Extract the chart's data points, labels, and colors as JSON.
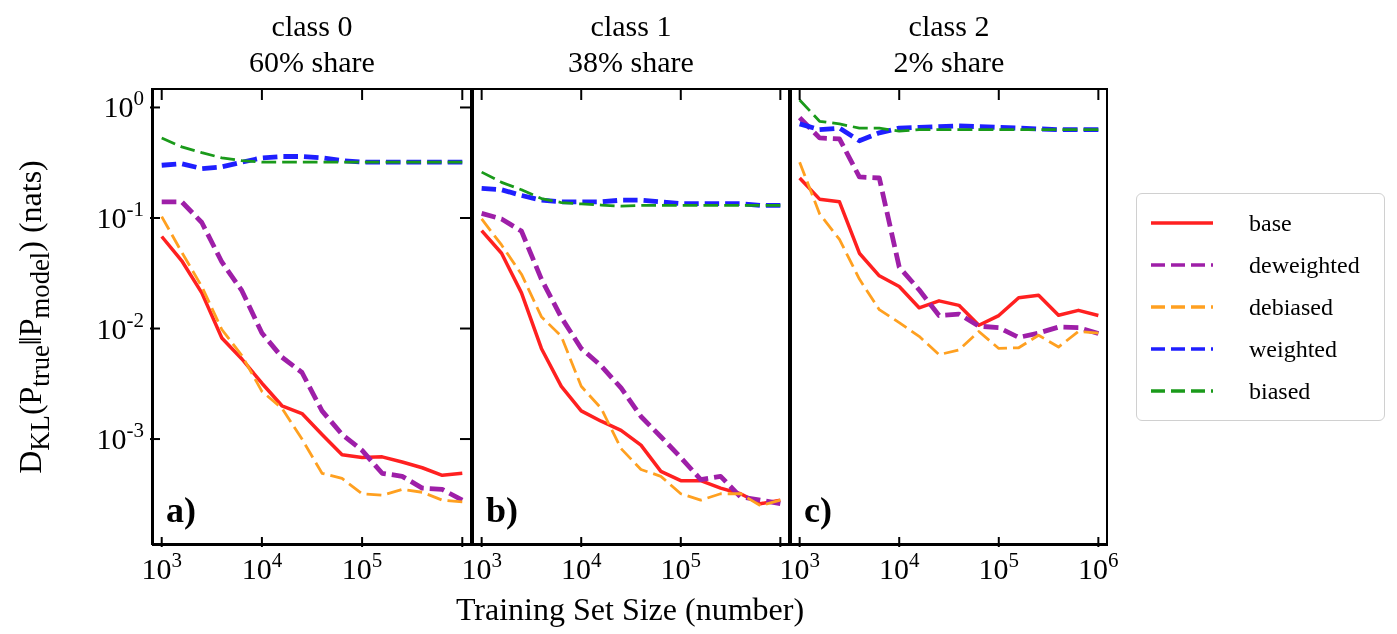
{
  "chart_data": [
    {
      "type": "line",
      "title": "class 0",
      "subtitle": "60% share",
      "ylabel": "D$_{KL}$(P$_{true}$‖P$_{model}$) (nats)",
      "log": "xy",
      "annotations": [
        "a)"
      ],
      "x": [
        1000,
        1585,
        2512,
        3981,
        6310,
        10000,
        15849,
        25119,
        39811,
        63096,
        100000,
        158489,
        251189,
        398107,
        630957,
        1000000
      ],
      "xlim": [
        800,
        1250000
      ],
      "xticks": [
        {
          "value": 1000,
          "label": "10$^{3}$"
        },
        {
          "value": 10000,
          "label": "10$^{4}$"
        },
        {
          "value": 100000,
          "label": "10$^{5}$"
        },
        {
          "value": 1000000,
          "label": null
        }
      ],
      "ylim": [
        0.00011,
        1.5
      ],
      "yticks": [
        {
          "value": 0.001,
          "label": "10$^{-3}$"
        },
        {
          "value": 0.01,
          "label": "10$^{-2}$"
        },
        {
          "value": 0.1,
          "label": "10$^{-1}$"
        },
        {
          "value": 1,
          "label": "10$^{0}$"
        }
      ],
      "grid": false,
      "marker": "none",
      "series": [
        {
          "color": "#ff2020",
          "line_style": "solid",
          "values": [
            0.068,
            0.041,
            0.021,
            0.0082,
            0.0053,
            0.0032,
            0.002,
            0.0017,
            0.0011,
            0.00072,
            0.00068,
            0.00069,
            0.00062,
            0.00055,
            0.00047,
            0.00049
          ]
        },
        {
          "color": "#9e1fa8",
          "line_style": "dashed",
          "values": [
            0.14,
            0.14,
            0.091,
            0.04,
            0.022,
            0.0091,
            0.0055,
            0.004,
            0.0018,
            0.0011,
            0.00079,
            0.00049,
            0.00046,
            0.00036,
            0.00035,
            0.00028
          ]
        },
        {
          "color": "#ffa020",
          "line_style": "dashed",
          "values": [
            0.103,
            0.049,
            0.024,
            0.0098,
            0.0057,
            0.0027,
            0.0019,
            0.001,
            0.00049,
            0.00044,
            0.00032,
            0.00031,
            0.00035,
            0.00033,
            0.00028,
            0.00027
          ]
        },
        {
          "color": "#1f1fff",
          "line_style": "dashed",
          "values": [
            0.3,
            0.31,
            0.28,
            0.29,
            0.32,
            0.35,
            0.36,
            0.36,
            0.35,
            0.33,
            0.32,
            0.32,
            0.32,
            0.32,
            0.32,
            0.32
          ]
        },
        {
          "color": "#1a9a1a",
          "line_style": "dashed",
          "values": [
            0.53,
            0.44,
            0.39,
            0.35,
            0.33,
            0.32,
            0.32,
            0.32,
            0.32,
            0.32,
            0.32,
            0.32,
            0.32,
            0.32,
            0.32,
            0.32
          ]
        }
      ]
    },
    {
      "type": "line",
      "title": "class 1",
      "subtitle": "38% share",
      "xlabel": "Training Set Size (number)",
      "log": "xy",
      "annotations": [
        "b)"
      ],
      "tick_labels": "x",
      "x": [
        1000,
        1585,
        2512,
        3981,
        6310,
        10000,
        15849,
        25119,
        39811,
        63096,
        100000,
        158489,
        251189,
        398107,
        630957,
        1000000
      ],
      "xlim": [
        800,
        1250000
      ],
      "xticks": [
        {
          "value": 1000,
          "label": "10$^{3}$"
        },
        {
          "value": 10000,
          "label": "10$^{4}$"
        },
        {
          "value": 100000,
          "label": "10$^{5}$"
        },
        {
          "value": 1000000,
          "label": null
        }
      ],
      "ylim": [
        0.00011,
        1.5
      ],
      "yticks": [
        {
          "value": 0.001,
          "label": null
        },
        {
          "value": 0.01,
          "label": null
        },
        {
          "value": 0.1,
          "label": null
        },
        {
          "value": 1,
          "label": null
        }
      ],
      "grid": false,
      "marker": "none",
      "series": [
        {
          "color": "#ff2020",
          "line_style": "solid",
          "values": [
            0.077,
            0.048,
            0.021,
            0.0066,
            0.003,
            0.0018,
            0.00145,
            0.0012,
            0.00088,
            0.00051,
            0.00042,
            0.00042,
            0.00036,
            0.00032,
            0.00026,
            0.00028
          ]
        },
        {
          "color": "#9e1fa8",
          "line_style": "dashed",
          "values": [
            0.11,
            0.098,
            0.076,
            0.028,
            0.0126,
            0.0066,
            0.0046,
            0.0029,
            0.0016,
            0.00105,
            0.00068,
            0.00043,
            0.00046,
            0.0003,
            0.00028,
            0.00026
          ]
        },
        {
          "color": "#ffa020",
          "line_style": "dashed",
          "values": [
            0.098,
            0.057,
            0.031,
            0.0128,
            0.0085,
            0.003,
            0.0019,
            0.00082,
            0.00053,
            0.00046,
            0.00032,
            0.00028,
            0.00032,
            0.00032,
            0.00025,
            0.00028
          ]
        },
        {
          "color": "#1f1fff",
          "line_style": "dashed",
          "values": [
            0.185,
            0.18,
            0.16,
            0.145,
            0.14,
            0.14,
            0.14,
            0.145,
            0.145,
            0.14,
            0.135,
            0.135,
            0.135,
            0.135,
            0.13,
            0.13
          ]
        },
        {
          "color": "#1a9a1a",
          "line_style": "dashed",
          "values": [
            0.26,
            0.21,
            0.18,
            0.15,
            0.138,
            0.134,
            0.131,
            0.128,
            0.13,
            0.13,
            0.13,
            0.13,
            0.13,
            0.13,
            0.13,
            0.13
          ]
        }
      ]
    },
    {
      "type": "line",
      "title": "class 2",
      "subtitle": "2% share",
      "log": "xy",
      "annotations": [
        "c)"
      ],
      "tick_labels": "x",
      "legend": "right",
      "x": [
        1000,
        1585,
        2512,
        3981,
        6310,
        10000,
        15849,
        25119,
        39811,
        63096,
        100000,
        158489,
        251189,
        398107,
        630957,
        1000000
      ],
      "xlim": [
        800,
        1250000
      ],
      "xticks": [
        {
          "value": 1000,
          "label": "10$^{3}$"
        },
        {
          "value": 10000,
          "label": "10$^{4}$"
        },
        {
          "value": 100000,
          "label": "10$^{5}$"
        },
        {
          "value": 1000000,
          "label": "10$^{6}$"
        }
      ],
      "ylim": [
        0.00011,
        1.5
      ],
      "yticks": [
        {
          "value": 0.001,
          "label": null
        },
        {
          "value": 0.01,
          "label": null
        },
        {
          "value": 0.1,
          "label": null
        },
        {
          "value": 1,
          "label": null
        }
      ],
      "grid": false,
      "marker": "none",
      "series": [
        {
          "name": "base",
          "color": "#ff2020",
          "line_style": "solid",
          "values": [
            0.23,
            0.148,
            0.14,
            0.048,
            0.03,
            0.024,
            0.0154,
            0.0178,
            0.0162,
            0.0107,
            0.0131,
            0.019,
            0.02,
            0.0132,
            0.0146,
            0.0131
          ]
        },
        {
          "name": "deweighted",
          "color": "#9e1fa8",
          "line_style": "dashed",
          "values": [
            0.81,
            0.53,
            0.52,
            0.235,
            0.23,
            0.036,
            0.0224,
            0.0131,
            0.0135,
            0.0105,
            0.0102,
            0.0083,
            0.0091,
            0.0103,
            0.0102,
            0.009
          ]
        },
        {
          "name": "debiased",
          "color": "#ffa020",
          "line_style": "dashed",
          "values": [
            0.32,
            0.109,
            0.064,
            0.028,
            0.0148,
            0.0113,
            0.0085,
            0.0058,
            0.0064,
            0.0094,
            0.0066,
            0.0067,
            0.0087,
            0.0068,
            0.0094,
            0.0091
          ]
        },
        {
          "name": "weighted",
          "color": "#1f1fff",
          "line_style": "dashed",
          "values": [
            0.71,
            0.63,
            0.65,
            0.5,
            0.59,
            0.65,
            0.66,
            0.67,
            0.68,
            0.67,
            0.66,
            0.65,
            0.64,
            0.63,
            0.63,
            0.63
          ]
        },
        {
          "name": "biased",
          "color": "#1a9a1a",
          "line_style": "dashed",
          "values": [
            1.17,
            0.75,
            0.71,
            0.65,
            0.65,
            0.61,
            0.63,
            0.63,
            0.63,
            0.63,
            0.63,
            0.63,
            0.63,
            0.63,
            0.63,
            0.63
          ]
        }
      ]
    }
  ]
}
